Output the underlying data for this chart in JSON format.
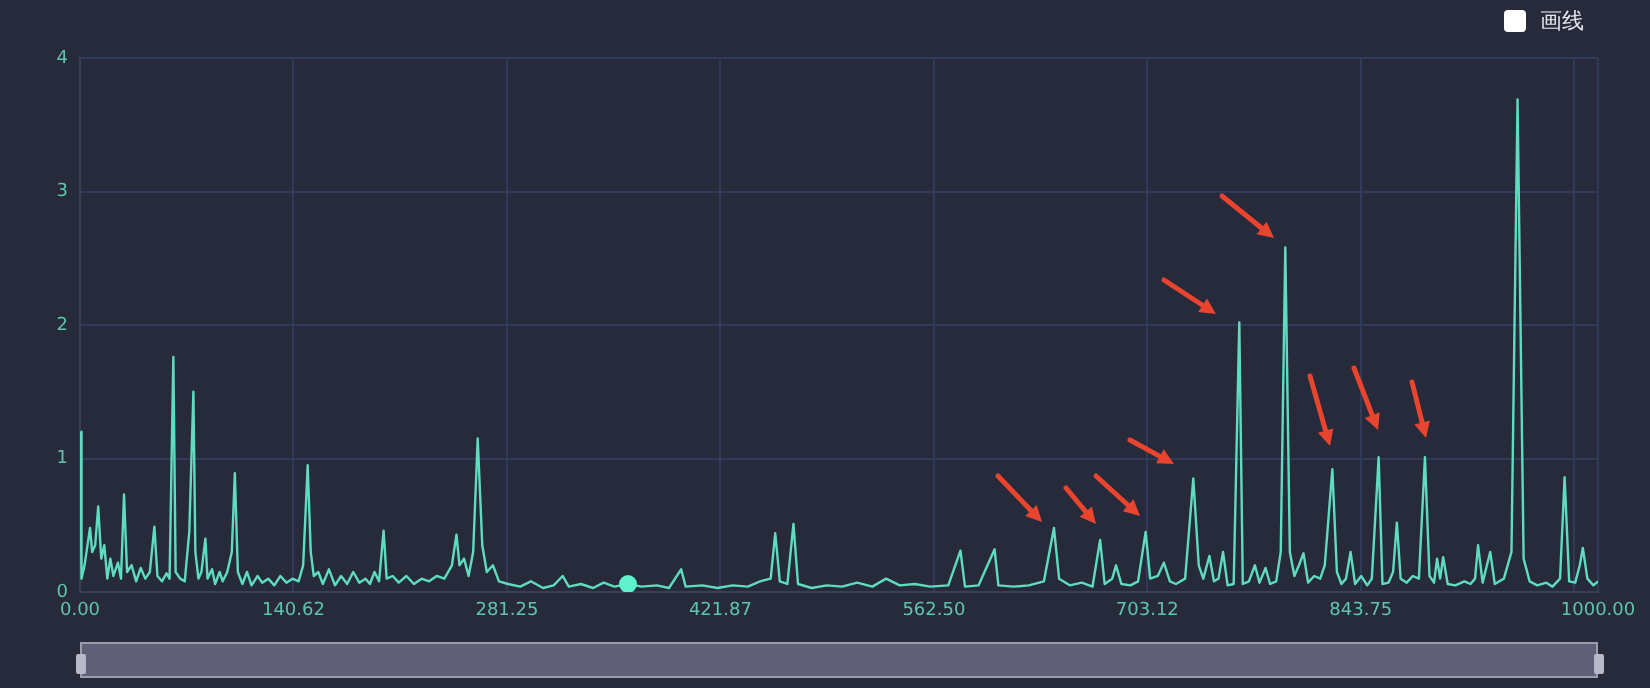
{
  "chart_data": {
    "type": "line",
    "xlim": [
      0,
      1000
    ],
    "xticks": [
      {
        "value": 0,
        "label": "0.00"
      },
      {
        "value": 140.625,
        "label": "140.62"
      },
      {
        "value": 281.25,
        "label": "281.25"
      },
      {
        "value": 421.875,
        "label": "421.87"
      },
      {
        "value": 562.5,
        "label": "562.50"
      },
      {
        "value": 703.125,
        "label": "703.12"
      },
      {
        "value": 843.75,
        "label": "843.75"
      },
      {
        "value": 984.375,
        "label": null
      },
      {
        "value": 1000,
        "label": "1000.00"
      }
    ],
    "ylim": [
      0,
      4
    ],
    "yticks": [
      0,
      1,
      2,
      3,
      4
    ],
    "grid": true,
    "marker": "none",
    "annotations": [
      "画线"
    ],
    "series": [
      {
        "color": "#5fdcc0",
        "x": [
          0,
          1,
          3,
          6.6,
          8,
          10,
          12,
          14,
          16,
          18,
          20,
          22,
          25,
          27,
          29,
          31,
          34,
          37,
          40,
          43,
          46,
          49,
          51,
          54,
          57,
          59,
          61.5,
          63,
          66,
          69,
          72,
          74.7,
          76,
          78,
          80,
          82.6,
          84,
          87,
          89,
          92,
          94,
          97,
          100,
          102,
          104,
          107,
          110,
          113,
          117,
          120,
          124,
          128,
          132,
          136,
          140,
          144,
          147,
          150,
          152,
          154,
          157,
          160,
          164,
          168,
          172,
          176,
          180,
          184,
          188,
          191,
          194,
          197,
          200,
          202,
          206,
          210,
          215,
          220,
          225,
          230,
          235,
          240,
          245,
          248,
          250,
          253,
          256,
          259,
          262,
          265,
          268,
          272,
          276,
          282,
          290,
          297,
          305,
          312,
          318,
          322,
          330,
          338,
          345,
          352,
          361,
          370,
          380,
          388,
          396,
          399,
          410,
          420,
          430,
          440,
          448,
          455,
          458,
          461,
          466,
          470,
          473,
          482,
          492,
          502,
          512,
          522,
          531,
          540,
          550,
          560,
          572,
          580,
          583,
          592,
          602.5,
          605,
          615,
          625,
          635,
          641.6,
          645,
          652,
          660,
          667,
          672,
          675,
          680,
          682.5,
          686,
          692,
          697,
          702,
          705,
          710,
          714,
          718,
          722,
          728,
          733.4,
          737,
          740,
          744,
          747,
          750,
          753,
          756,
          760,
          763.7,
          766,
          770,
          774,
          777,
          781,
          784,
          788,
          791,
          794,
          797,
          800,
          803,
          806,
          809,
          813,
          817,
          820,
          825,
          828,
          831,
          834,
          837,
          840,
          844,
          848,
          851,
          855.5,
          858,
          862,
          865,
          867.5,
          870,
          874,
          878,
          882,
          886,
          889,
          892,
          894,
          896,
          898,
          901,
          906,
          912,
          916,
          919,
          921,
          924,
          929,
          932,
          938,
          943,
          947,
          951,
          955,
          960,
          966,
          970,
          975,
          978,
          981,
          985,
          988,
          990,
          993,
          997,
          1000
        ],
        "values": [
          1.2,
          0.1,
          0.2,
          0.48,
          0.3,
          0.35,
          0.64,
          0.25,
          0.35,
          0.1,
          0.25,
          0.12,
          0.22,
          0.1,
          0.73,
          0.15,
          0.2,
          0.08,
          0.18,
          0.1,
          0.15,
          0.49,
          0.12,
          0.08,
          0.14,
          0.1,
          1.76,
          0.15,
          0.1,
          0.08,
          0.45,
          1.5,
          0.3,
          0.1,
          0.15,
          0.4,
          0.1,
          0.17,
          0.06,
          0.15,
          0.08,
          0.15,
          0.3,
          0.89,
          0.15,
          0.06,
          0.15,
          0.05,
          0.12,
          0.07,
          0.1,
          0.05,
          0.12,
          0.07,
          0.1,
          0.08,
          0.2,
          0.95,
          0.3,
          0.12,
          0.15,
          0.06,
          0.17,
          0.05,
          0.12,
          0.06,
          0.15,
          0.07,
          0.1,
          0.06,
          0.15,
          0.08,
          0.46,
          0.1,
          0.12,
          0.07,
          0.12,
          0.06,
          0.1,
          0.08,
          0.12,
          0.1,
          0.2,
          0.43,
          0.2,
          0.25,
          0.12,
          0.3,
          1.15,
          0.35,
          0.15,
          0.2,
          0.08,
          0.06,
          0.04,
          0.08,
          0.03,
          0.05,
          0.12,
          0.04,
          0.06,
          0.03,
          0.07,
          0.04,
          0.06,
          0.04,
          0.05,
          0.03,
          0.17,
          0.04,
          0.05,
          0.03,
          0.05,
          0.04,
          0.08,
          0.1,
          0.44,
          0.08,
          0.06,
          0.51,
          0.06,
          0.03,
          0.05,
          0.04,
          0.07,
          0.04,
          0.1,
          0.05,
          0.06,
          0.04,
          0.05,
          0.31,
          0.04,
          0.05,
          0.32,
          0.05,
          0.04,
          0.05,
          0.08,
          0.48,
          0.1,
          0.05,
          0.07,
          0.04,
          0.39,
          0.06,
          0.1,
          0.2,
          0.06,
          0.05,
          0.08,
          0.45,
          0.1,
          0.12,
          0.22,
          0.08,
          0.06,
          0.1,
          0.85,
          0.2,
          0.1,
          0.27,
          0.08,
          0.1,
          0.3,
          0.05,
          0.06,
          2.02,
          0.06,
          0.08,
          0.2,
          0.07,
          0.18,
          0.06,
          0.08,
          0.3,
          2.58,
          0.3,
          0.12,
          0.2,
          0.29,
          0.07,
          0.12,
          0.1,
          0.2,
          0.92,
          0.15,
          0.06,
          0.1,
          0.3,
          0.06,
          0.12,
          0.05,
          0.1,
          1.01,
          0.06,
          0.07,
          0.15,
          0.52,
          0.1,
          0.07,
          0.12,
          0.1,
          1.01,
          0.12,
          0.07,
          0.25,
          0.1,
          0.26,
          0.06,
          0.05,
          0.08,
          0.06,
          0.1,
          0.35,
          0.07,
          0.3,
          0.06,
          0.1,
          0.3,
          3.69,
          0.25,
          0.08,
          0.05,
          0.07,
          0.04,
          0.1,
          0.86,
          0.08,
          0.07,
          0.2,
          0.33,
          0.1,
          0.05,
          0.08
        ]
      },
      {
        "type": "scatter",
        "color": "#5ff0cc",
        "marker": "circle",
        "x": [
          361
        ],
        "values": [
          0.06
        ]
      }
    ]
  }
}
